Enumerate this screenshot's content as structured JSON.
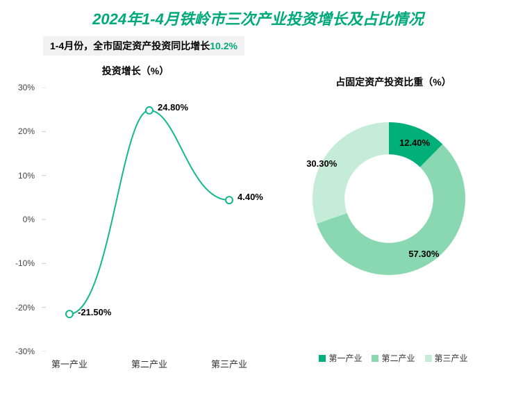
{
  "title": {
    "text": "2024年1-4月铁岭市三次产业投资增长及占比情况",
    "color": "#00a97a",
    "fontsize": 22
  },
  "subtitle": {
    "prefix": "1-4月份，全市固定资产投资同比增长",
    "highlight": "10.2%",
    "highlight_color": "#00a97a",
    "background": "#f2f2f2"
  },
  "line_chart": {
    "type": "line",
    "title": "投资增长（%）",
    "categories": [
      "第一产业",
      "第二产业",
      "第三产业"
    ],
    "values": [
      -21.5,
      24.8,
      4.4
    ],
    "value_labels": [
      "-21.50%",
      "24.80%",
      "4.40%"
    ],
    "line_color": "#14b88e",
    "line_width": 2,
    "marker_fill": "#ffffff",
    "marker_stroke": "#14b88e",
    "marker_radius": 5,
    "ylim": [
      -30,
      30
    ],
    "ytick_step": 10,
    "ytick_labels": [
      "-30%",
      "-20%",
      "-10%",
      "0%",
      "10%",
      "20%",
      "30%"
    ],
    "tick_color": "#cccccc",
    "axis_text_color": "#444444",
    "background_color": "#ffffff"
  },
  "donut_chart": {
    "type": "donut",
    "title": "占固定资产投资比重（%）",
    "categories": [
      "第一产业",
      "第二产业",
      "第三产业"
    ],
    "values": [
      12.4,
      57.3,
      30.3
    ],
    "value_labels": [
      "12.40%",
      "57.30%",
      "30.30%"
    ],
    "colors": [
      "#00b078",
      "#8ad8b2",
      "#c4ecd8"
    ],
    "inner_radius_ratio": 0.58,
    "start_angle_deg": -90,
    "background_color": "#ffffff"
  },
  "legend": {
    "items": [
      "第一产业",
      "第二产业",
      "第三产业"
    ],
    "colors": [
      "#00b078",
      "#8ad8b2",
      "#c4ecd8"
    ]
  }
}
